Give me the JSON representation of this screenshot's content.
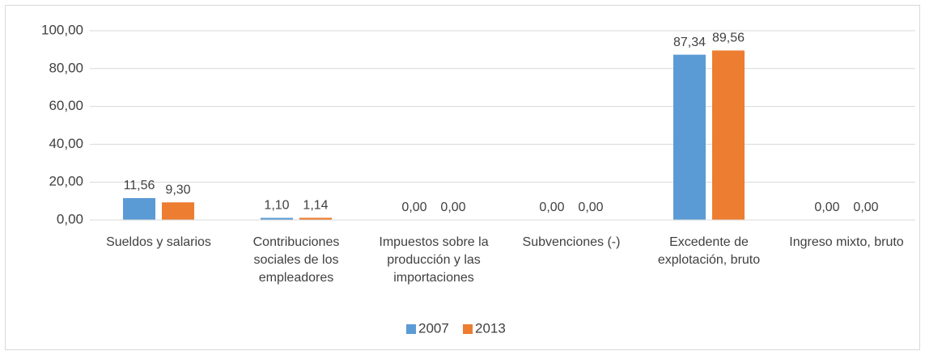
{
  "chart_data": {
    "type": "bar",
    "categories": [
      "Sueldos y salarios",
      "Contribuciones sociales de los empleadores",
      "Impuestos sobre la producción y las importaciones",
      "Subvenciones (-)",
      "Excedente de explotación, bruto",
      "Ingreso mixto, bruto"
    ],
    "series": [
      {
        "name": "2007",
        "color": "#5b9bd5",
        "values": [
          11.56,
          1.1,
          0.0,
          0.0,
          87.34,
          0.0
        ],
        "value_labels": [
          "11,56",
          "1,10",
          "0,00",
          "0,00",
          "87,34",
          "0,00"
        ]
      },
      {
        "name": "2013",
        "color": "#ed7d31",
        "values": [
          9.3,
          1.14,
          0.0,
          0.0,
          89.56,
          0.0
        ],
        "value_labels": [
          "9,30",
          "1,14",
          "0,00",
          "0,00",
          "89,56",
          "0,00"
        ]
      }
    ],
    "ylim": [
      0,
      100
    ],
    "yticks": [
      {
        "value": 0,
        "label": "0,00"
      },
      {
        "value": 20,
        "label": "20,00"
      },
      {
        "value": 40,
        "label": "40,00"
      },
      {
        "value": 60,
        "label": "60,00"
      },
      {
        "value": 80,
        "label": "80,00"
      },
      {
        "value": 100,
        "label": "100,00"
      }
    ],
    "grid": true,
    "legend": "bottom"
  }
}
